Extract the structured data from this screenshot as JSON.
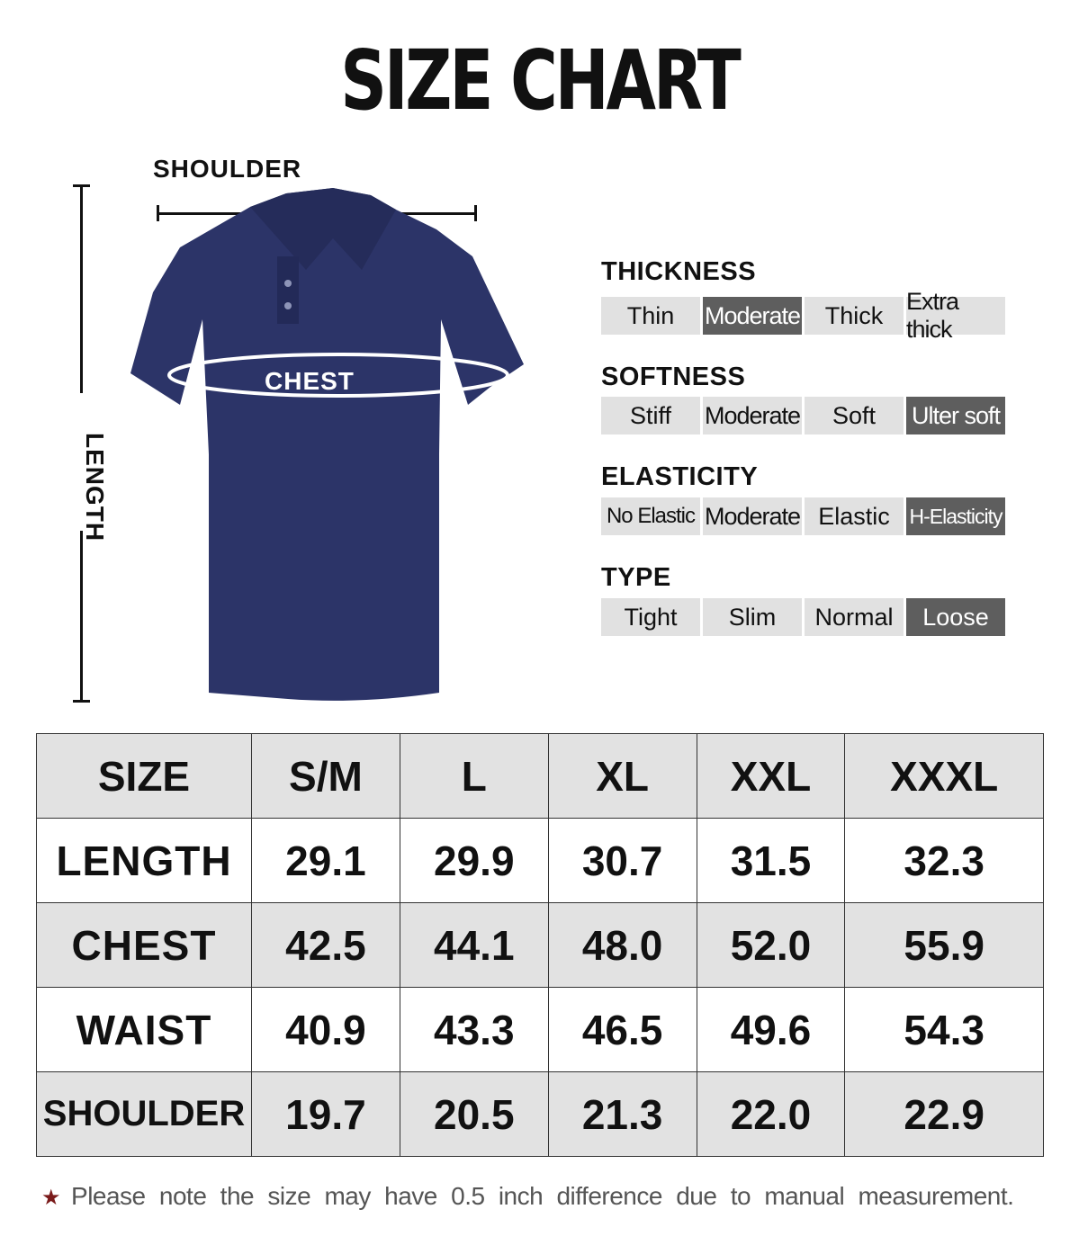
{
  "title": "SIZE CHART",
  "diagram": {
    "shoulder_label": "SHOULDER",
    "chest_label": "CHEST",
    "length_label": "LENGTH",
    "shirt_color": "#2c3468"
  },
  "attributes": [
    {
      "label": "THICKNESS",
      "options": [
        "Thin",
        "Moderate",
        "Thick",
        "Extra thick"
      ],
      "selected": "Moderate"
    },
    {
      "label": "SOFTNESS",
      "options": [
        "Stiff",
        "Moderate",
        "Soft",
        "Ulter soft"
      ],
      "selected": "Ulter soft"
    },
    {
      "label": "ELASTICITY",
      "options": [
        "No Elastic",
        "Moderate",
        "Elastic",
        "H-Elasticity"
      ],
      "selected": "H-Elasticity"
    },
    {
      "label": "TYPE",
      "options": [
        "Tight",
        "Slim",
        "Normal",
        "Loose"
      ],
      "selected": "Loose"
    }
  ],
  "size_table": {
    "headers": [
      "SIZE",
      "S/M",
      "L",
      "XL",
      "XXL",
      "XXXL"
    ],
    "rows": [
      {
        "label": "LENGTH",
        "values": [
          "29.1",
          "29.9",
          "30.7",
          "31.5",
          "32.3"
        ]
      },
      {
        "label": "CHEST",
        "values": [
          "42.5",
          "44.1",
          "48.0",
          "52.0",
          "55.9"
        ]
      },
      {
        "label": "WAIST",
        "values": [
          "40.9",
          "43.3",
          "46.5",
          "49.6",
          "54.3"
        ]
      },
      {
        "label": "SHOULDER",
        "values": [
          "19.7",
          "20.5",
          "21.3",
          "22.0",
          "22.9"
        ]
      }
    ]
  },
  "note": {
    "icon": "star-icon",
    "text": "Please note the size may have 0.5 inch difference due to manual measurement."
  },
  "colors": {
    "selected": "#5e5e5e",
    "unselected": "#e1e1e1",
    "table_alt": "#e2e2e2",
    "star": "#7a1a1a"
  }
}
